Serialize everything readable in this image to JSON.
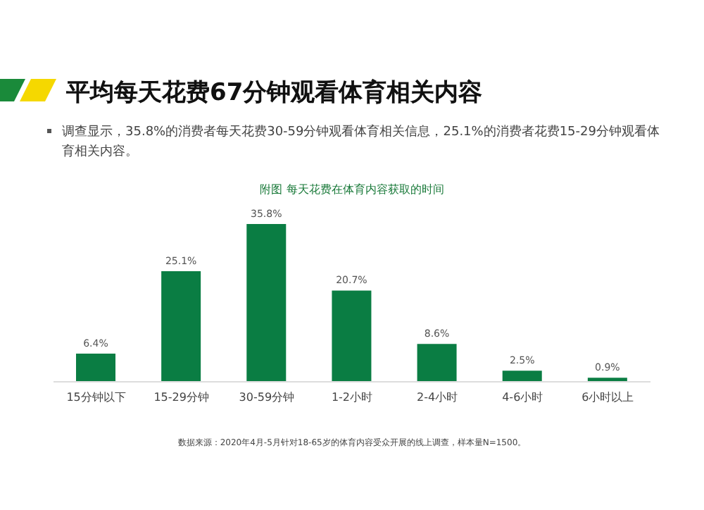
{
  "chart_data": {
    "type": "bar",
    "title": "平均每天花费67分钟观看体育相关内容",
    "subtitle": "附图  每天花费在体育内容获取的时间",
    "annotations": [
      "调查显示，35.8%的消费者每天花费30-59分钟观看体育相关信息，25.1%的消费者花费15-29分钟观看体育相关内容。",
      "数据来源：2020年4月-5月针对18-65岁的体育内容受众开展的线上调查，样本量N=1500。"
    ],
    "categories": [
      "15分钟以下",
      "15-29分钟",
      "30-59分钟",
      "1-2小时",
      "2-4小时",
      "4-6小时",
      "6小时以上"
    ],
    "values": [
      6.4,
      25.1,
      35.8,
      20.7,
      8.6,
      2.5,
      0.9
    ],
    "value_labels": [
      "6.4%",
      "25.1%",
      "35.8%",
      "20.7%",
      "8.6%",
      "2.5%",
      "0.9%"
    ],
    "color": "#0a7d43"
  }
}
